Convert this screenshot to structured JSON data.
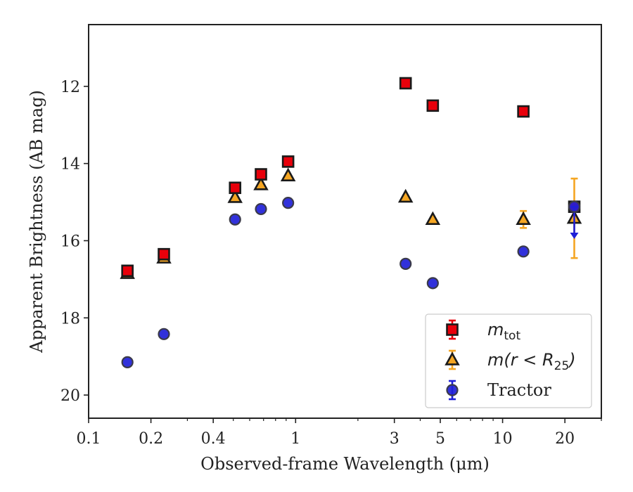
{
  "chart_data": {
    "type": "scatter",
    "xlabel": "Observed-frame Wavelength (μm)",
    "ylabel": "Apparent Brightness (AB mag)",
    "xscale": "log",
    "yinverted": true,
    "xlim": [
      0.1,
      30
    ],
    "ylim": [
      20.6,
      10.4
    ],
    "xticks": [
      0.1,
      0.2,
      0.4,
      1,
      3,
      5,
      10,
      20
    ],
    "xtick_labels": [
      "0.1",
      "0.2",
      "0.4",
      "1",
      "3",
      "5",
      "10",
      "20"
    ],
    "yticks": [
      12,
      14,
      16,
      18,
      20
    ],
    "ytick_labels": [
      "12",
      "14",
      "16",
      "18",
      "20"
    ],
    "grid": false,
    "legend_position": "bottom-right",
    "series": [
      {
        "name": "m_tot",
        "legend_label": "m",
        "legend_sub": "tot",
        "marker": "square",
        "color": "#e8000b",
        "points": [
          {
            "x": 0.154,
            "y": 16.78,
            "err": 0.05
          },
          {
            "x": 0.231,
            "y": 16.35,
            "err": 0.05
          },
          {
            "x": 0.51,
            "y": 14.63,
            "err": 0.03
          },
          {
            "x": 0.68,
            "y": 14.28,
            "err": 0.03
          },
          {
            "x": 0.92,
            "y": 13.95,
            "err": 0.03
          },
          {
            "x": 3.4,
            "y": 11.92,
            "err": 0.03
          },
          {
            "x": 4.6,
            "y": 12.5,
            "err": 0.03
          },
          {
            "x": 12.6,
            "y": 12.65,
            "err": 0.03
          },
          {
            "x": 22.2,
            "y": 15.12,
            "err": 0.05
          }
        ]
      },
      {
        "name": "m(r < R25)",
        "legend_label": "m(r < R",
        "legend_sub": "25",
        "legend_suffix": ")",
        "marker": "triangle",
        "color": "#f5a623",
        "points": [
          {
            "x": 0.154,
            "y": 16.85,
            "err": 0.05
          },
          {
            "x": 0.231,
            "y": 16.45,
            "err": 0.05
          },
          {
            "x": 0.51,
            "y": 14.88,
            "err": 0.03
          },
          {
            "x": 0.68,
            "y": 14.55,
            "err": 0.03
          },
          {
            "x": 0.92,
            "y": 14.32,
            "err": 0.03
          },
          {
            "x": 3.4,
            "y": 14.87,
            "err": 0.03
          },
          {
            "x": 4.6,
            "y": 15.45,
            "err": 0.05
          },
          {
            "x": 12.6,
            "y": 15.45,
            "err": 0.22
          },
          {
            "x": 22.2,
            "y": 15.42,
            "err": 1.03
          }
        ]
      },
      {
        "name": "Tractor",
        "legend_label": "Tractor",
        "marker": "circle",
        "color": "#1f1fd8",
        "points": [
          {
            "x": 0.154,
            "y": 19.15,
            "err": 0.05
          },
          {
            "x": 0.231,
            "y": 18.42,
            "err": 0.05
          },
          {
            "x": 0.51,
            "y": 15.45,
            "err": 0.05
          },
          {
            "x": 0.68,
            "y": 15.18,
            "err": 0.05
          },
          {
            "x": 0.92,
            "y": 15.02,
            "err": 0.05
          },
          {
            "x": 3.4,
            "y": 16.6,
            "err": 0.05
          },
          {
            "x": 4.6,
            "y": 17.1,
            "err": 0.05
          },
          {
            "x": 12.6,
            "y": 16.28,
            "err": 0.05
          },
          {
            "x": 22.2,
            "y": 15.12,
            "upper_limit": true,
            "limit_to": 15.9
          }
        ]
      }
    ]
  }
}
